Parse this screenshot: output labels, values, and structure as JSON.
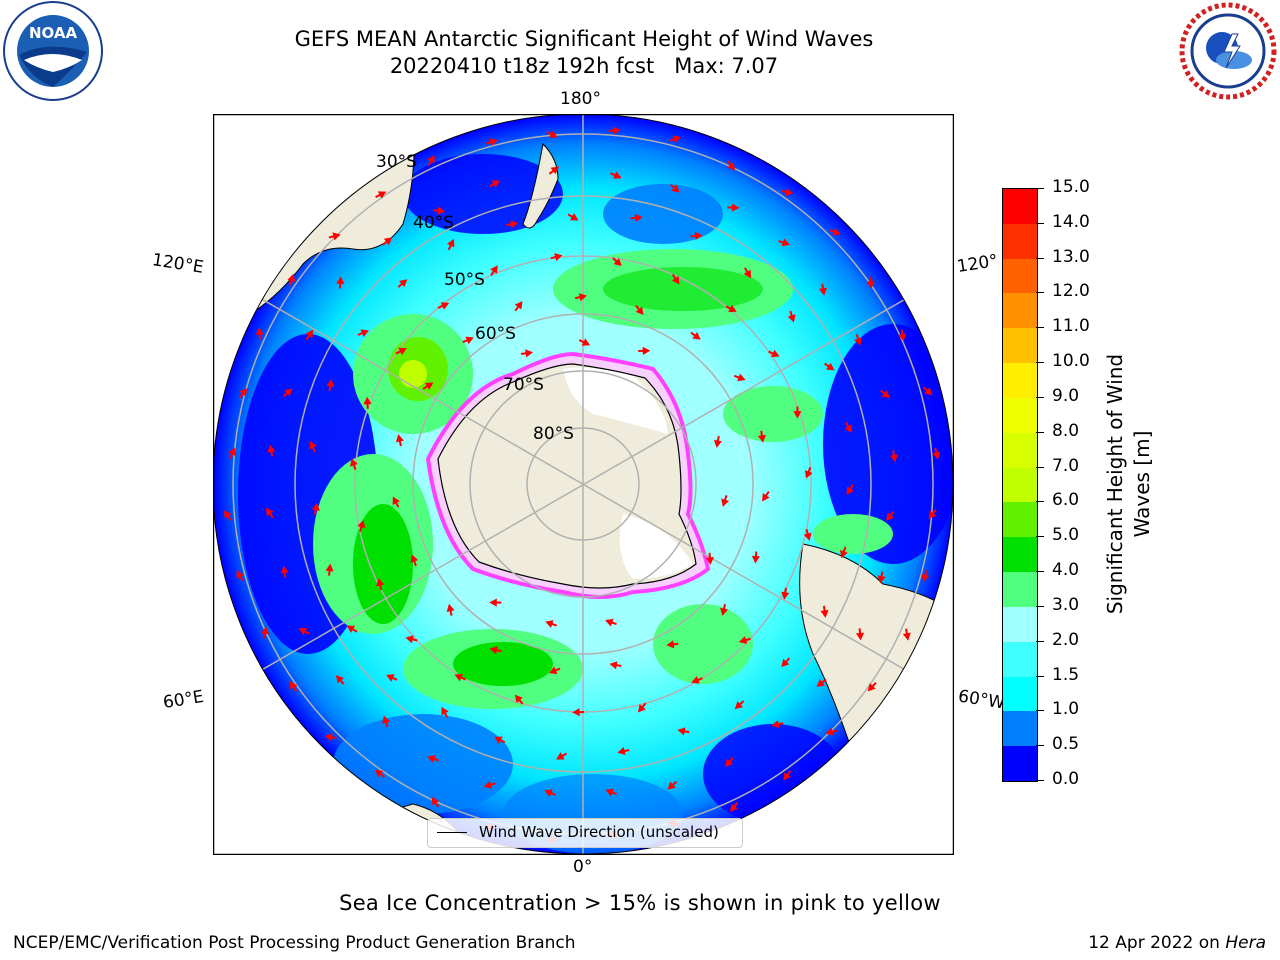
{
  "title": {
    "line1": "GEFS MEAN Antarctic Significant Height of Wind Waves",
    "line2": "20220410 t18z 192h fcst   Max: 7.07"
  },
  "map": {
    "longitude_labels": {
      "top": "180°",
      "bottom": "0°",
      "upper_left": "120°E",
      "upper_right": "120°",
      "lower_left": "60°E",
      "lower_right": "60°W"
    },
    "latitude_labels": [
      "30°S",
      "40°S",
      "50°S",
      "60°S",
      "70°S",
      "80°S"
    ],
    "legend_label": "Wind Wave Direction (unscaled)",
    "colors": {
      "land": "#efecdc",
      "ocean_low": "#0000ff",
      "ice": "#ffffff",
      "arrows": "#ff0000",
      "graticule": "#b0b0b0"
    }
  },
  "colorbar": {
    "label": "Significant Height of Wind Waves [m]",
    "ticks": [
      "0.0",
      "0.5",
      "1.0",
      "1.5",
      "2.0",
      "3.0",
      "4.0",
      "5.0",
      "6.0",
      "7.0",
      "8.0",
      "9.0",
      "10.0",
      "11.0",
      "12.0",
      "13.0",
      "14.0",
      "15.0"
    ],
    "colors": [
      "#0000ff",
      "#0080ff",
      "#00ffff",
      "#40ffff",
      "#a0ffff",
      "#50ff80",
      "#00e000",
      "#60f000",
      "#c0ff00",
      "#d8ff00",
      "#f0ff00",
      "#ffee00",
      "#ffc000",
      "#ff9000",
      "#ff6000",
      "#ff3000",
      "#ff0000"
    ]
  },
  "footer": {
    "note": "Sea Ice Concentration > 15% is shown in pink to yellow",
    "left": "NCEP/EMC/Verification Post Processing Product Generation Branch",
    "right_prefix": "12 Apr 2022 on ",
    "right_host": "Hera"
  },
  "logos": {
    "left": "NOAA",
    "right": "NATIONAL WEATHER SERVICE"
  }
}
